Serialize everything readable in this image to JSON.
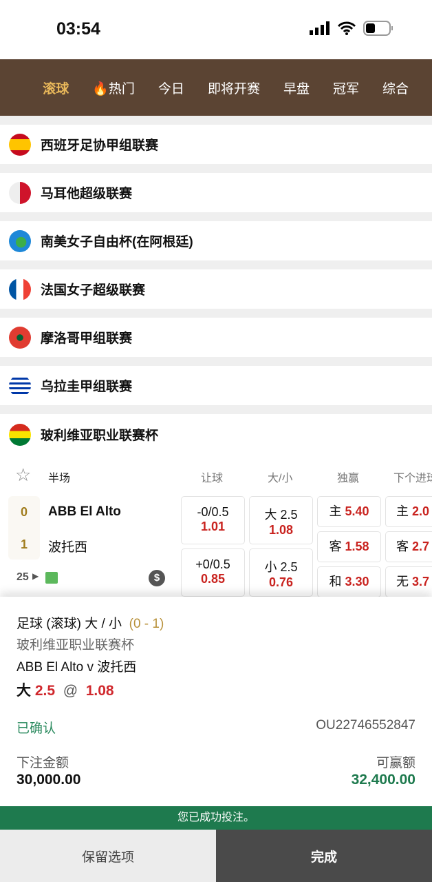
{
  "status": {
    "time": "03:54"
  },
  "nav": {
    "items": [
      "滚球",
      "热门",
      "今日",
      "即将开赛",
      "早盘",
      "冠军",
      "综合"
    ]
  },
  "leagues": [
    "西班牙足协甲组联赛",
    "马耳他超级联赛",
    "南美女子自由杯(在阿根廷)",
    "法国女子超级联赛",
    "摩洛哥甲组联赛",
    "乌拉圭甲组联赛",
    "玻利维亚职业联赛杯"
  ],
  "match": {
    "period": "半场",
    "headers": [
      "让球",
      "大/小",
      "独赢",
      "下个进球"
    ],
    "home": {
      "score": "0",
      "name": "ABB El Alto"
    },
    "away": {
      "score": "1",
      "name": "波托西"
    },
    "minute": "25",
    "handicap": [
      {
        "line": "-0/0.5",
        "odds": "1.01"
      },
      {
        "line": "+0/0.5",
        "odds": "0.85"
      }
    ],
    "ou": [
      {
        "line": "大 2.5",
        "odds": "1.08"
      },
      {
        "line": "小 2.5",
        "odds": "0.76"
      }
    ],
    "oneXtwo": [
      {
        "label": "主",
        "odds": "5.40"
      },
      {
        "label": "客",
        "odds": "1.58"
      },
      {
        "label": "和",
        "odds": "3.30"
      }
    ],
    "next": [
      {
        "label": "主",
        "odds": "2.0"
      },
      {
        "label": "客",
        "odds": "2.7"
      },
      {
        "label": "无",
        "odds": "3.7"
      }
    ]
  },
  "bet": {
    "market": "足球 (滚球) 大 / 小",
    "score": "(0 - 1)",
    "league": "玻利维亚职业联赛杯",
    "fixture": "ABB El Alto v 波托西",
    "selection": "大",
    "line": "2.5",
    "at": "@",
    "odds": "1.08",
    "status": "已确认",
    "ref": "OU22746552847",
    "stake_label": "下注金额",
    "stake": "30,000.00",
    "win_label": "可赢额",
    "win": "32,400.00"
  },
  "banner": "您已成功投注。",
  "buttons": {
    "keep": "保留选项",
    "done": "完成"
  }
}
